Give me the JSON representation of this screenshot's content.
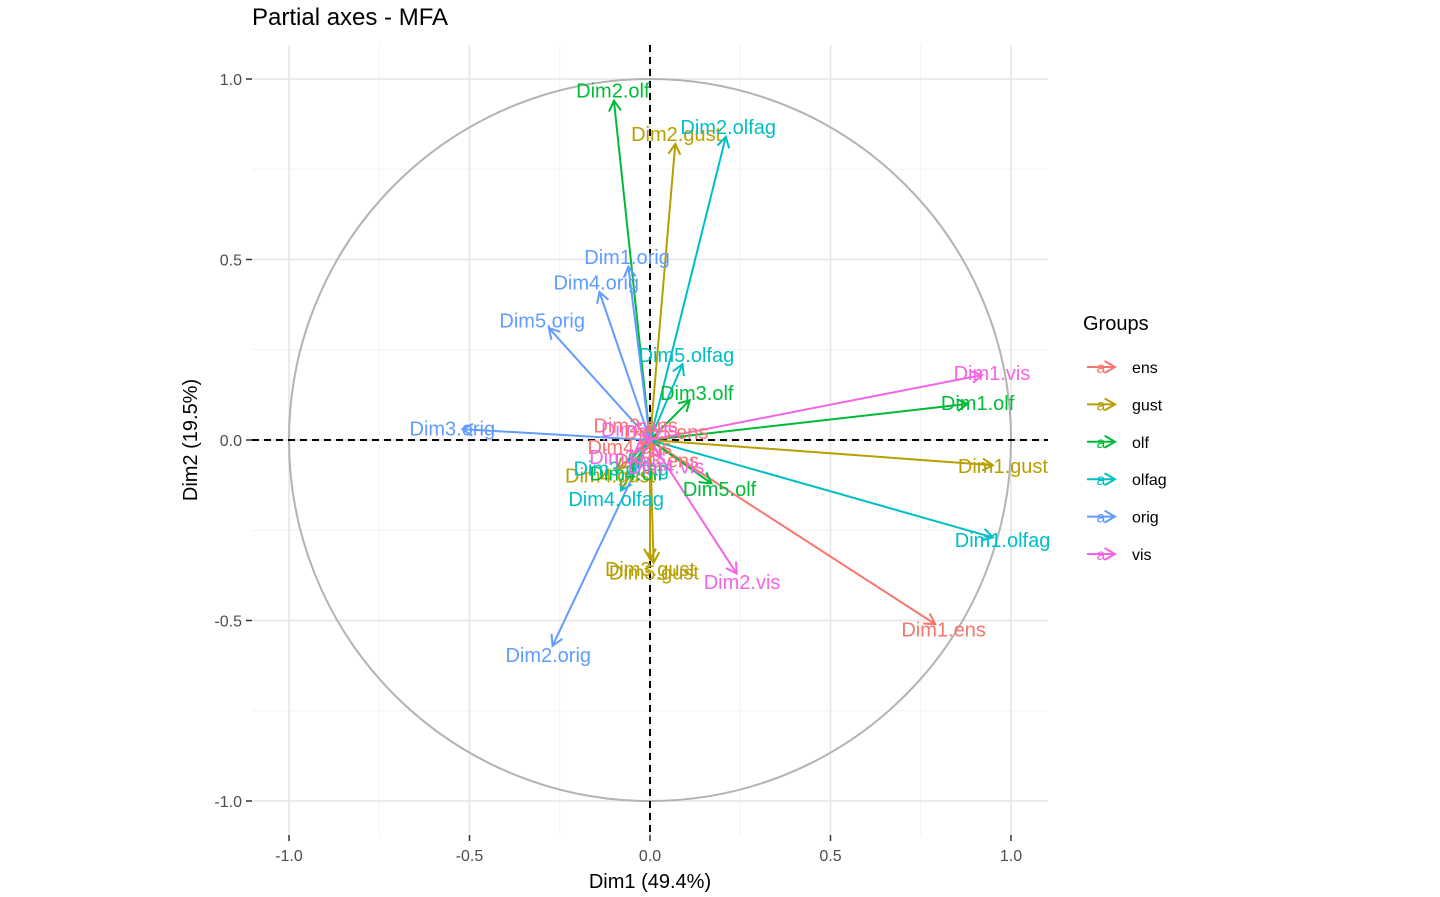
{
  "chart_data": {
    "type": "scatter",
    "subtype": "variable-correlation-circle",
    "title": "Partial axes - MFA",
    "xlabel": "Dim1 (49.4%)",
    "ylabel": "Dim2 (19.5%)",
    "xlim": [
      -1.1,
      1.1
    ],
    "ylim": [
      -1.1,
      1.1
    ],
    "xticks": [
      -1.0,
      -0.5,
      0.0,
      0.5,
      1.0
    ],
    "yticks": [
      -1.0,
      -0.5,
      0.0,
      0.5,
      1.0
    ],
    "xtick_labels": [
      "-1.0",
      "-0.5",
      "0.0",
      "0.5",
      "1.0"
    ],
    "ytick_labels": [
      "-1.0",
      "-0.5",
      "0.0",
      "0.5",
      "1.0"
    ],
    "grid": true,
    "unit_circle": true,
    "legend": {
      "title": "Groups",
      "position": "right",
      "key_glyph": "a",
      "groups": [
        {
          "name": "ens",
          "color": "#F8766D"
        },
        {
          "name": "gust",
          "color": "#B79F00"
        },
        {
          "name": "olf",
          "color": "#00BA38"
        },
        {
          "name": "olfag",
          "color": "#00BFC4"
        },
        {
          "name": "orig",
          "color": "#619CFF"
        },
        {
          "name": "vis",
          "color": "#F564E3"
        }
      ]
    },
    "variables": [
      {
        "label": "Dim1.ens",
        "group": "ens",
        "x": 0.79,
        "y": -0.51
      },
      {
        "label": "Dim2.ens",
        "group": "ens",
        "x": -0.02,
        "y": 0.02
      },
      {
        "label": "Dim3.ens",
        "group": "ens",
        "x": 0.01,
        "y": -0.03
      },
      {
        "label": "Dim4.ens",
        "group": "ens",
        "x": -0.03,
        "y": -0.01
      },
      {
        "label": "Dim5.ens",
        "group": "ens",
        "x": 0.02,
        "y": 0.01
      },
      {
        "label": "Dim1.gust",
        "group": "gust",
        "x": 0.95,
        "y": -0.07
      },
      {
        "label": "Dim2.gust",
        "group": "gust",
        "x": 0.07,
        "y": 0.82
      },
      {
        "label": "Dim3.gust",
        "group": "gust",
        "x": 0.0,
        "y": -0.33
      },
      {
        "label": "Dim4.gust",
        "group": "gust",
        "x": -0.09,
        "y": -0.08
      },
      {
        "label": "Dim5.gust",
        "group": "gust",
        "x": 0.01,
        "y": -0.34
      },
      {
        "label": "Dim1.olf",
        "group": "olf",
        "x": 0.88,
        "y": 0.1
      },
      {
        "label": "Dim2.olf",
        "group": "olf",
        "x": -0.1,
        "y": 0.94
      },
      {
        "label": "Dim3.olf",
        "group": "olf",
        "x": 0.11,
        "y": 0.11
      },
      {
        "label": "Dim4.olf",
        "group": "olf",
        "x": -0.05,
        "y": -0.07
      },
      {
        "label": "Dim5.olf",
        "group": "olf",
        "x": 0.17,
        "y": -0.12
      },
      {
        "label": "Dim1.olfag",
        "group": "olfag",
        "x": 0.95,
        "y": -0.27
      },
      {
        "label": "Dim2.olfag",
        "group": "olfag",
        "x": 0.21,
        "y": 0.84
      },
      {
        "label": "Dim3.olfag",
        "group": "olfag",
        "x": -0.06,
        "y": -0.06
      },
      {
        "label": "Dim4.olfag",
        "group": "olfag",
        "x": -0.08,
        "y": -0.14
      },
      {
        "label": "Dim5.olfag",
        "group": "olfag",
        "x": 0.09,
        "y": 0.21
      },
      {
        "label": "Dim1.orig",
        "group": "orig",
        "x": -0.06,
        "y": 0.48
      },
      {
        "label": "Dim2.orig",
        "group": "orig",
        "x": -0.27,
        "y": -0.57
      },
      {
        "label": "Dim3.orig",
        "group": "orig",
        "x": -0.52,
        "y": 0.03
      },
      {
        "label": "Dim4.orig",
        "group": "orig",
        "x": -0.14,
        "y": 0.41
      },
      {
        "label": "Dim5.orig",
        "group": "orig",
        "x": -0.28,
        "y": 0.31
      },
      {
        "label": "Dim1.vis",
        "group": "vis",
        "x": 0.92,
        "y": 0.18
      },
      {
        "label": "Dim2.vis",
        "group": "vis",
        "x": 0.24,
        "y": -0.37
      },
      {
        "label": "Dim3.vis",
        "group": "vis",
        "x": -0.04,
        "y": -0.03
      },
      {
        "label": "Dim4.vis",
        "group": "vis",
        "x": 0.03,
        "y": -0.05
      },
      {
        "label": "Dim5.vis",
        "group": "vis",
        "x": -0.01,
        "y": 0.01
      }
    ]
  }
}
